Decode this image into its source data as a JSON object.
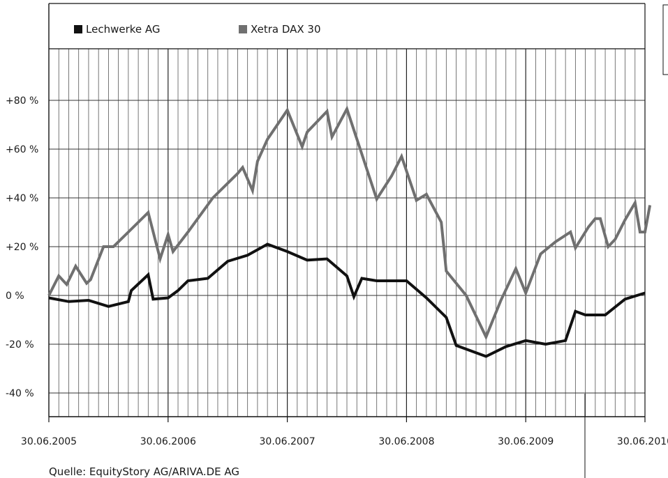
{
  "source_text": "Quelle: EquityStory AG/ARIVA.DE AG",
  "chart_data": {
    "type": "line",
    "title": "",
    "xlabel": "",
    "ylabel": "",
    "ylim": [
      -50,
      90
    ],
    "y_ticks": [
      -40,
      -20,
      0,
      20,
      40,
      60,
      80
    ],
    "y_tick_labels": [
      "-40 %",
      "-20 %",
      "0 %",
      "+20 %",
      "+40 %",
      "+60 %",
      "+80 %"
    ],
    "x_tick_labels": [
      "30.06.2005",
      "30.06.2006",
      "30.06.2007",
      "30.06.2008",
      "30.06.2009",
      "30.06.2010"
    ],
    "x_range_months": [
      0,
      60
    ],
    "grid": "vertical monthly lines",
    "legend_position": "top",
    "series": [
      {
        "name": "Lechwerke AG",
        "color": "#111111",
        "points": [
          [
            0,
            -1
          ],
          [
            2,
            -2.5
          ],
          [
            4,
            -2
          ],
          [
            6,
            -4.5
          ],
          [
            8,
            -2.5
          ],
          [
            8.3,
            2
          ],
          [
            10,
            8.5
          ],
          [
            10.5,
            -1.5
          ],
          [
            12,
            -1
          ],
          [
            13,
            2
          ],
          [
            14,
            6
          ],
          [
            16,
            7
          ],
          [
            18,
            14
          ],
          [
            20,
            16.5
          ],
          [
            22,
            21
          ],
          [
            24,
            18
          ],
          [
            26,
            14.5
          ],
          [
            28,
            15
          ],
          [
            30,
            8
          ],
          [
            30.7,
            -0.5
          ],
          [
            31.5,
            7
          ],
          [
            33,
            6
          ],
          [
            36,
            6
          ],
          [
            38,
            -1
          ],
          [
            40,
            -9
          ],
          [
            41,
            -20.5
          ],
          [
            42,
            -22
          ],
          [
            44,
            -25
          ],
          [
            46,
            -21
          ],
          [
            48,
            -18.5
          ],
          [
            50,
            -20
          ],
          [
            52,
            -18.5
          ],
          [
            53,
            -6.5
          ],
          [
            54,
            -8
          ],
          [
            56,
            -8
          ],
          [
            58,
            -1.5
          ],
          [
            60,
            1
          ]
        ]
      },
      {
        "name": "Xetra DAX 30",
        "color": "#707070",
        "points": [
          [
            0,
            0
          ],
          [
            1,
            8
          ],
          [
            1.8,
            4.5
          ],
          [
            2.7,
            12
          ],
          [
            3.8,
            5
          ],
          [
            4.2,
            6.5
          ],
          [
            5.5,
            20
          ],
          [
            6.5,
            20
          ],
          [
            8,
            26
          ],
          [
            10,
            34
          ],
          [
            11.2,
            15
          ],
          [
            12,
            25
          ],
          [
            12.5,
            18
          ],
          [
            14,
            26
          ],
          [
            16.5,
            40
          ],
          [
            19,
            50
          ],
          [
            19.5,
            52.5
          ],
          [
            20.5,
            43
          ],
          [
            21,
            55
          ],
          [
            22,
            64
          ],
          [
            24,
            76
          ],
          [
            25.5,
            61
          ],
          [
            26,
            67
          ],
          [
            28,
            75.5
          ],
          [
            28.5,
            65
          ],
          [
            30,
            76.5
          ],
          [
            33,
            39.5
          ],
          [
            34.5,
            49
          ],
          [
            35.5,
            57
          ],
          [
            37,
            39
          ],
          [
            38,
            41.5
          ],
          [
            39.5,
            30
          ],
          [
            40,
            10
          ],
          [
            42,
            0
          ],
          [
            44,
            -17
          ],
          [
            45.5,
            -2
          ],
          [
            47,
            11
          ],
          [
            48,
            1
          ],
          [
            49.5,
            17
          ],
          [
            51,
            22
          ],
          [
            52.5,
            26
          ],
          [
            53,
            19.5
          ],
          [
            54.3,
            28
          ],
          [
            55,
            31.5
          ],
          [
            55.5,
            31.5
          ],
          [
            56.3,
            20
          ],
          [
            57,
            23
          ],
          [
            58,
            31
          ],
          [
            59,
            38
          ],
          [
            59.5,
            26
          ],
          [
            60,
            26
          ],
          [
            60.5,
            37
          ]
        ]
      }
    ]
  }
}
